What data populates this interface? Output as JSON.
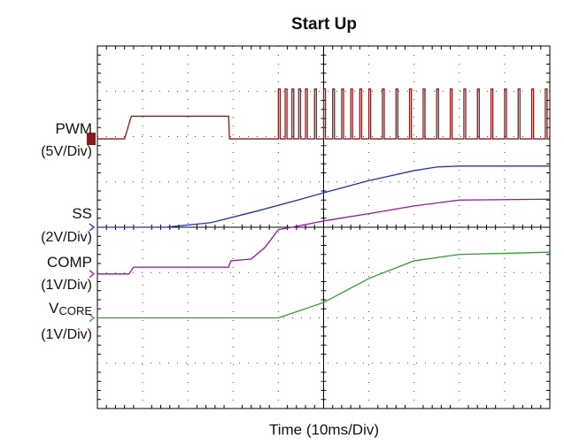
{
  "chart_data": {
    "type": "line",
    "title": "Start Up",
    "xlabel": "Time (10ms/Div)",
    "xlim": [
      0,
      10
    ],
    "ylim": [
      0,
      8
    ],
    "xticks": [
      0,
      1,
      2,
      3,
      4,
      5,
      6,
      7,
      8,
      9,
      10
    ],
    "yticks": [
      0,
      1,
      2,
      3,
      4,
      5,
      6,
      7,
      8
    ],
    "grid": true,
    "series": [
      {
        "name": "PWM",
        "scale": "(5V/Div)",
        "color": "#8b1a1a",
        "x": [
          0,
          0.6,
          0.75,
          2.9,
          2.92,
          4.0,
          4.0,
          4.04,
          4.04,
          4.15,
          4.15,
          4.19,
          4.19,
          4.3,
          4.3,
          4.34,
          4.34,
          4.45,
          4.45,
          4.49,
          4.49,
          4.6,
          4.6,
          4.64,
          4.64,
          4.8,
          4.8,
          4.84,
          4.84,
          5.0,
          5.0,
          5.04,
          5.04,
          5.2,
          5.2,
          5.24,
          5.24,
          5.4,
          5.4,
          5.44,
          5.44,
          5.6,
          5.6,
          5.64,
          5.64,
          5.8,
          5.8,
          5.84,
          5.84,
          6.0,
          6.0,
          6.04,
          6.04,
          6.3,
          6.3,
          6.34,
          6.34,
          6.6,
          6.6,
          6.64,
          6.64,
          6.9,
          6.9,
          6.94,
          6.94,
          7.2,
          7.2,
          7.24,
          7.24,
          7.5,
          7.5,
          7.54,
          7.54,
          7.8,
          7.8,
          7.84,
          7.84,
          8.1,
          8.1,
          8.14,
          8.14,
          8.4,
          8.4,
          8.44,
          8.44,
          8.7,
          8.7,
          8.74,
          8.74,
          9.0,
          9.0,
          9.04,
          9.04,
          9.3,
          9.3,
          9.34,
          9.34,
          9.6,
          9.6,
          9.64,
          9.64,
          9.9,
          9.9,
          9.94,
          9.94,
          10
        ],
        "values": [
          5.95,
          5.95,
          6.45,
          6.45,
          5.95,
          5.95,
          7.05,
          7.05,
          5.95,
          5.95,
          7.05,
          7.05,
          5.95,
          5.95,
          7.05,
          7.05,
          5.95,
          5.95,
          7.05,
          7.05,
          5.95,
          5.95,
          7.05,
          7.05,
          5.95,
          5.95,
          7.05,
          7.05,
          5.95,
          5.95,
          7.05,
          7.05,
          5.95,
          5.95,
          7.05,
          7.05,
          5.95,
          5.95,
          7.05,
          7.05,
          5.95,
          5.95,
          7.05,
          7.05,
          5.95,
          5.95,
          7.05,
          7.05,
          5.95,
          5.95,
          7.05,
          7.05,
          5.95,
          5.95,
          7.05,
          7.05,
          5.95,
          5.95,
          7.05,
          7.05,
          5.95,
          5.95,
          7.05,
          7.05,
          5.95,
          5.95,
          7.05,
          7.05,
          5.95,
          5.95,
          7.05,
          7.05,
          5.95,
          5.95,
          7.05,
          7.05,
          5.95,
          5.95,
          7.05,
          7.05,
          5.95,
          5.95,
          7.05,
          7.05,
          5.95,
          5.95,
          7.05,
          7.05,
          5.95,
          5.95,
          7.05,
          7.05,
          5.95,
          5.95,
          7.05,
          7.05,
          5.95,
          5.95,
          7.05,
          7.05,
          5.95,
          5.95,
          7.05,
          7.05,
          5.95,
          5.95
        ]
      },
      {
        "name": "SS",
        "scale": "(2V/Div)",
        "color": "#2233aa",
        "x": [
          0,
          1.5,
          2.5,
          3.5,
          4.5,
          5,
          6,
          7,
          7.5,
          8,
          10
        ],
        "values": [
          4,
          4,
          4.1,
          4.35,
          4.62,
          4.76,
          5.03,
          5.25,
          5.33,
          5.35,
          5.35
        ]
      },
      {
        "name": "COMP",
        "scale": "(1V/Div)",
        "color": "#8e1a9e",
        "x": [
          0,
          0.7,
          0.8,
          2.9,
          2.95,
          3.4,
          3.7,
          4.0,
          4.3,
          5,
          6,
          7,
          8,
          10
        ],
        "values": [
          2.97,
          2.97,
          3.12,
          3.12,
          3.26,
          3.3,
          3.55,
          3.95,
          4.0,
          4.14,
          4.3,
          4.47,
          4.6,
          4.62
        ]
      },
      {
        "name": "V",
        "subscript": "CORE",
        "scale": "(1V/Div)",
        "color": "#2e9e2e",
        "x": [
          0,
          4.0,
          5,
          6,
          7,
          8,
          10
        ],
        "values": [
          2,
          2,
          2.34,
          2.87,
          3.26,
          3.4,
          3.45
        ]
      }
    ]
  }
}
